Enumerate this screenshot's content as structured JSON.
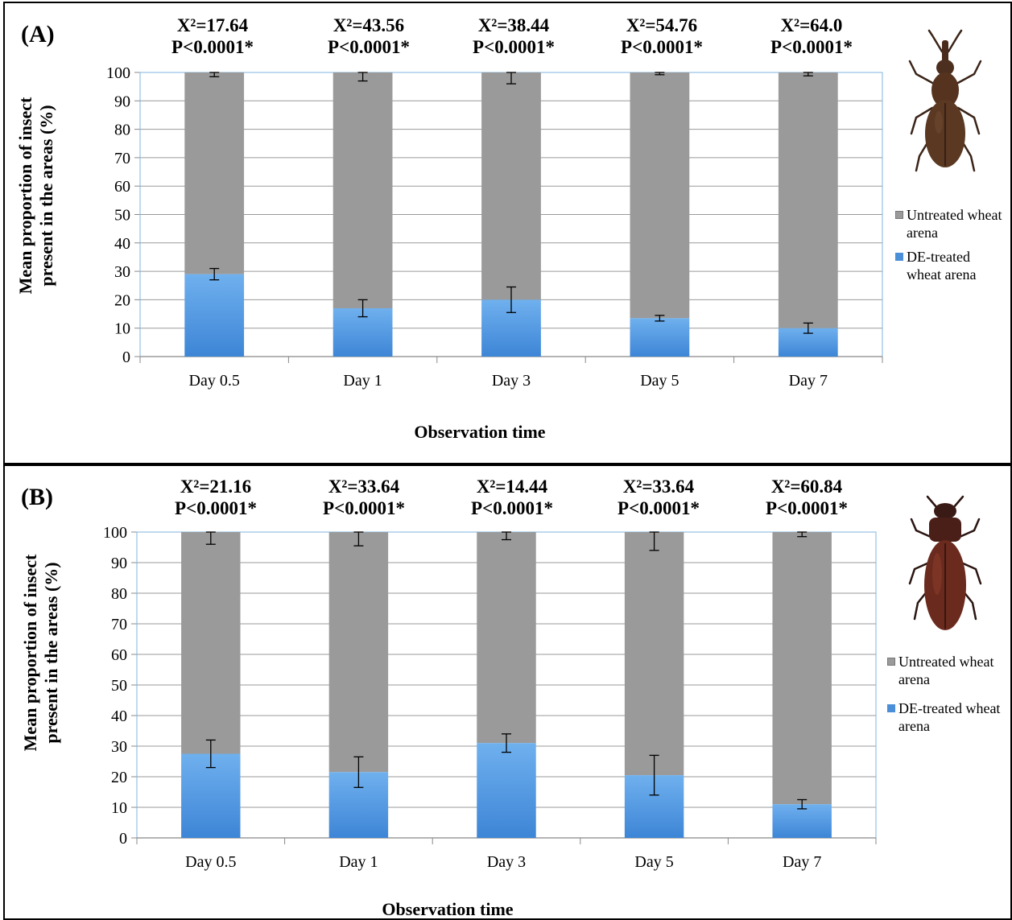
{
  "legend": {
    "untreated": "Untreated wheat arena",
    "treated": "DE-treated wheat arena"
  },
  "colors": {
    "untreated": "#9a9a9a",
    "treated": "#3d85d6",
    "grid": "#9a9a9a",
    "frame": "#7fb5e0"
  },
  "panels": [
    {
      "label": "(A)",
      "ylabel_line1": "Mean proportion of insect",
      "ylabel_line2": "present in the areas (%)",
      "xlabel": "Observation time",
      "legend_untreated_lines": [
        "Untreated wheat",
        "arena"
      ],
      "legend_treated_lines": [
        "DE-treated",
        "wheat arena"
      ],
      "insect_icon": "weevil-icon",
      "stats": [
        {
          "chi": "X²=17.64",
          "p": "P<0.0001*"
        },
        {
          "chi": "X²=43.56",
          "p": "P<0.0001*"
        },
        {
          "chi": "X²=38.44",
          "p": "P<0.0001*"
        },
        {
          "chi": "X²=54.76",
          "p": "P<0.0001*"
        },
        {
          "chi": "X²=64.0",
          "p": "P<0.0001*"
        }
      ]
    },
    {
      "label": "(B)",
      "ylabel_line1": "Mean proportion of insect",
      "ylabel_line2": "present in the areas (%)",
      "xlabel": "Observation time",
      "legend_untreated_lines": [
        "Untreated wheat",
        "arena"
      ],
      "legend_treated_lines": [
        "DE-treated wheat",
        "arena"
      ],
      "insect_icon": "flour-beetle-icon",
      "stats": [
        {
          "chi": "X²=21.16",
          "p": "P<0.0001*"
        },
        {
          "chi": "X²=33.64",
          "p": "P<0.0001*"
        },
        {
          "chi": "X²=14.44",
          "p": "P<0.0001*"
        },
        {
          "chi": "X²=33.64",
          "p": "P<0.0001*"
        },
        {
          "chi": "X²=60.84",
          "p": "P<0.0001*"
        }
      ]
    }
  ],
  "chart_data": [
    {
      "type": "bar",
      "stacked": true,
      "categories": [
        "Day 0.5",
        "Day 1",
        "Day 3",
        "Day 5",
        "Day 7"
      ],
      "series": [
        {
          "name": "DE-treated wheat arena",
          "values": [
            29,
            17,
            20,
            13.5,
            10
          ],
          "error": [
            2,
            3,
            4.5,
            1,
            1.8
          ]
        },
        {
          "name": "Untreated wheat arena",
          "values": [
            71,
            83,
            80,
            86.5,
            90
          ],
          "error": [
            1.5,
            3,
            4,
            0.8,
            1.2
          ]
        }
      ],
      "xlabel": "Observation time",
      "ylabel": "Mean proportion of insect present in the areas (%)",
      "ylim": [
        0,
        100
      ],
      "yticks": [
        0,
        10,
        20,
        30,
        40,
        50,
        60,
        70,
        80,
        90,
        100
      ],
      "grid": true,
      "legend": "right"
    },
    {
      "type": "bar",
      "stacked": true,
      "categories": [
        "Day 0.5",
        "Day 1",
        "Day 3",
        "Day 5",
        "Day 7"
      ],
      "series": [
        {
          "name": "DE-treated wheat arena",
          "values": [
            27.5,
            21.5,
            31,
            20.5,
            11
          ],
          "error": [
            4.5,
            5,
            3,
            6.5,
            1.5
          ]
        },
        {
          "name": "Untreated wheat arena",
          "values": [
            72.5,
            78.5,
            69,
            79.5,
            89
          ],
          "error": [
            4,
            4.5,
            2.5,
            6,
            1.5
          ]
        }
      ],
      "xlabel": "Observation time",
      "ylabel": "Mean proportion of insect present in the areas (%)",
      "ylim": [
        0,
        100
      ],
      "yticks": [
        0,
        10,
        20,
        30,
        40,
        50,
        60,
        70,
        80,
        90,
        100
      ],
      "grid": true,
      "legend": "right"
    }
  ]
}
